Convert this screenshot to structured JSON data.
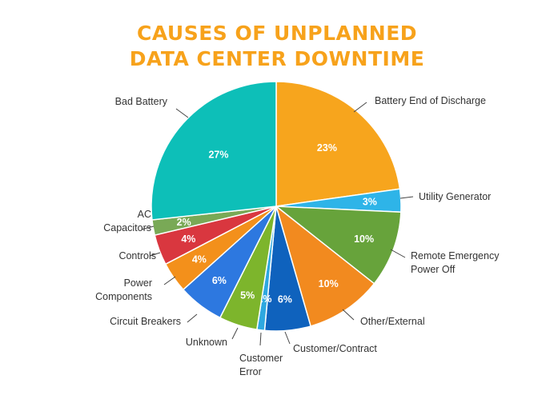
{
  "chart_data": {
    "type": "pie",
    "title": [
      "CAUSES OF UNPLANNED",
      "DATA CENTER DOWNTIME"
    ],
    "unit": "%",
    "slices": [
      {
        "label": [
          "Battery End of Discharge"
        ],
        "value": 23,
        "color": "#f7a51d"
      },
      {
        "label": [
          "Utility Generator"
        ],
        "value": 3,
        "color": "#2eb4e8"
      },
      {
        "label": [
          "Remote Emergency",
          "Power Off"
        ],
        "value": 10,
        "color": "#67a33b"
      },
      {
        "label": [
          "Other/External"
        ],
        "value": 10,
        "color": "#f28a1f"
      },
      {
        "label": [
          "Customer/Contract"
        ],
        "value": 6,
        "color": "#0f62bd"
      },
      {
        "label": [
          "Customer",
          "Error"
        ],
        "value": 1,
        "color": "#2ea8e0"
      },
      {
        "label": [
          "Unknown"
        ],
        "value": 5,
        "color": "#7db52c"
      },
      {
        "label": [
          "Circuit Breakers"
        ],
        "value": 6,
        "color": "#2d78e0"
      },
      {
        "label": [
          "Power",
          "Components"
        ],
        "value": 4,
        "color": "#f3901b"
      },
      {
        "label": [
          "Controls"
        ],
        "value": 4,
        "color": "#d9373f"
      },
      {
        "label": [
          "AC",
          "Capacitors"
        ],
        "value": 2,
        "color": "#79a956"
      },
      {
        "label": [
          "Bad Battery"
        ],
        "value": 27,
        "color": "#0dbfb8"
      }
    ]
  }
}
